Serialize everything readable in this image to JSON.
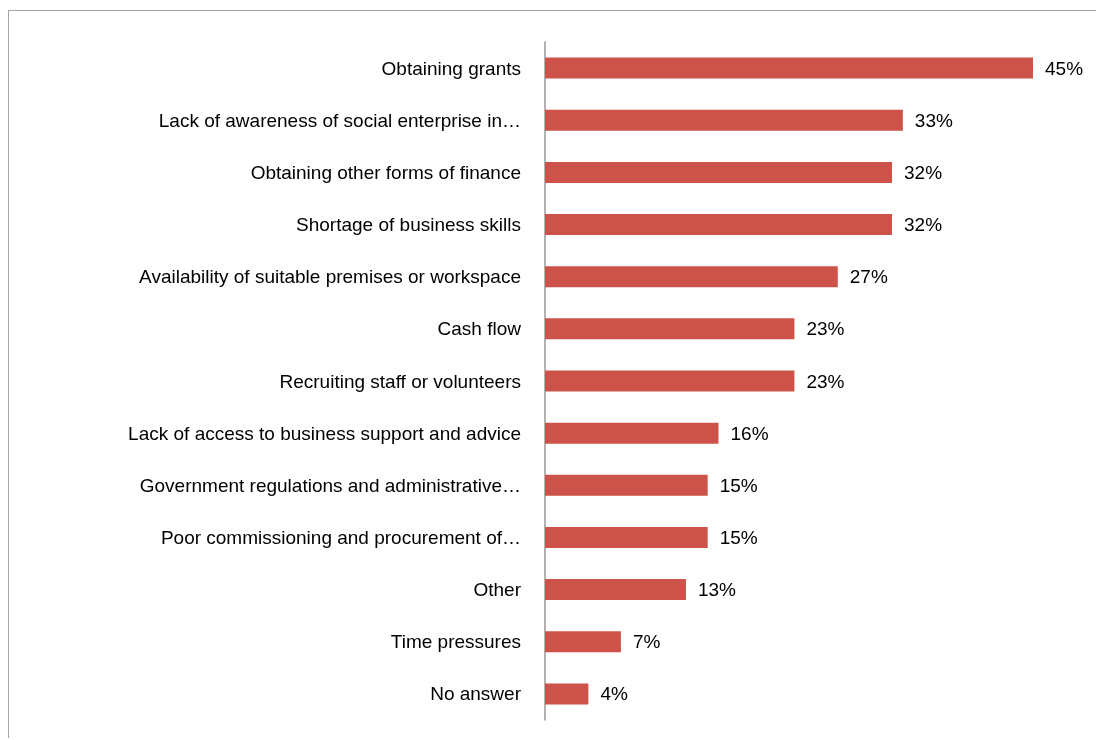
{
  "chart_data": {
    "type": "bar",
    "orientation": "horizontal",
    "categories": [
      "Obtaining grants",
      "Lack of awareness of social enterprise in…",
      "Obtaining other forms of finance",
      "Shortage of business skills",
      "Availability of suitable premises or workspace",
      "Cash flow",
      "Recruiting staff or volunteers",
      "Lack of access to business support and advice",
      "Government regulations and administrative…",
      "Poor commissioning and procurement of…",
      "Other",
      "Time pressures",
      "No answer"
    ],
    "values": [
      45,
      33,
      32,
      32,
      27,
      23,
      23,
      16,
      15,
      15,
      13,
      7,
      4
    ],
    "value_labels": [
      "45%",
      "33%",
      "32%",
      "32%",
      "27%",
      "23%",
      "23%",
      "16%",
      "15%",
      "15%",
      "13%",
      "7%",
      "4%"
    ],
    "color": "#cd524a",
    "grid": false
  }
}
